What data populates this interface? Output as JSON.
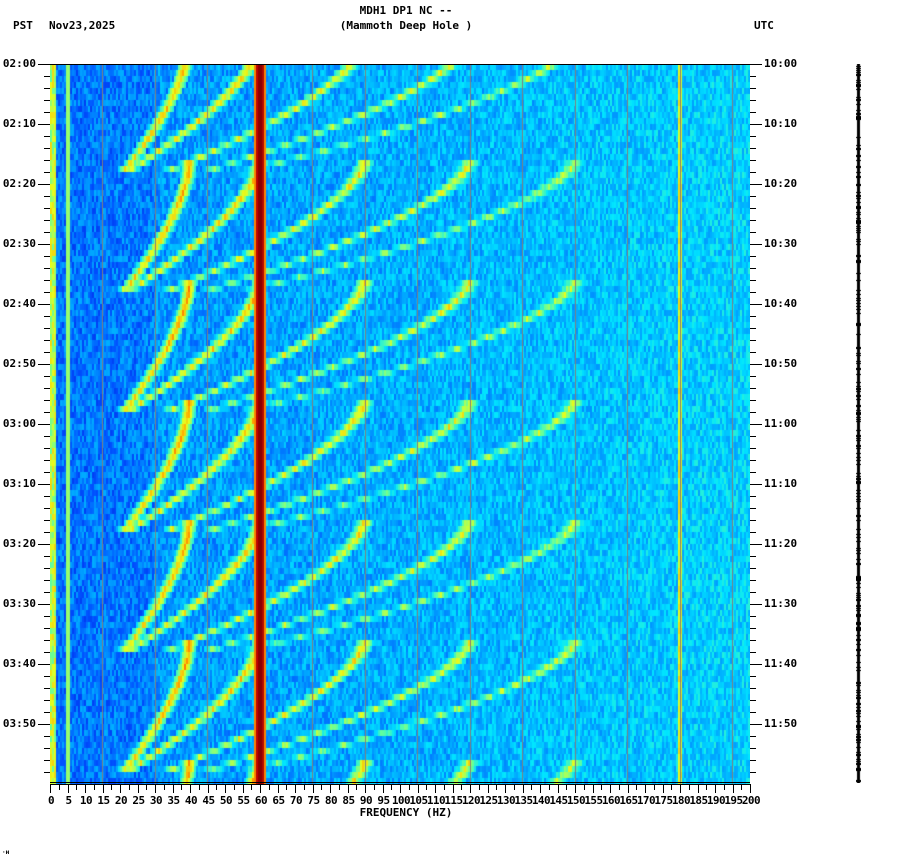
{
  "header": {
    "station_line": "MDH1 DP1 NC --",
    "station_name": "(Mammoth Deep Hole )",
    "left_timezone": "PST",
    "date": "Nov23,2025",
    "right_timezone": "UTC"
  },
  "footer": {
    "corner_mark": "·ʜ"
  },
  "colors": {
    "background": "#ffffff",
    "axis": "#000000",
    "gridline": "#7f7f7f",
    "colormap": [
      "#0000c8",
      "#0050ff",
      "#00a0ff",
      "#00e6ff",
      "#60ffa0",
      "#e6ff1e",
      "#ffb400",
      "#ff3c00",
      "#a00000"
    ]
  },
  "chart_data": {
    "type": "heatmap",
    "title": "MDH1 DP1 NC -- (Mammoth Deep Hole )",
    "subtitle_left": "PST  Nov23,2025",
    "subtitle_right": "UTC",
    "xlabel": "FREQUENCY (HZ)",
    "ylabel_left": "PST",
    "ylabel_right": "UTC",
    "xlim": [
      0,
      200
    ],
    "ylim_minutes": [
      0,
      120
    ],
    "x_ticks": [
      0,
      5,
      10,
      15,
      20,
      25,
      30,
      35,
      40,
      45,
      50,
      55,
      60,
      65,
      70,
      75,
      80,
      85,
      90,
      95,
      100,
      105,
      110,
      115,
      120,
      125,
      130,
      135,
      140,
      145,
      150,
      155,
      160,
      165,
      170,
      175,
      180,
      185,
      190,
      195,
      200
    ],
    "y_ticks_left": [
      "02:00",
      "02:10",
      "02:20",
      "02:30",
      "02:40",
      "02:50",
      "03:00",
      "03:10",
      "03:20",
      "03:30",
      "03:40",
      "03:50"
    ],
    "y_ticks_right": [
      "10:00",
      "10:10",
      "10:20",
      "10:30",
      "10:40",
      "10:50",
      "11:00",
      "11:10",
      "11:20",
      "11:30",
      "11:40",
      "11:50"
    ],
    "y_minor_tick_interval_minutes": 2,
    "grid": {
      "vertical_lines_every_hz": 15,
      "color": "#7f7f7f"
    },
    "persistent_lines_hz": [
      {
        "freq": 60,
        "intensity": "very high",
        "color": "dark red"
      },
      {
        "freq": 1,
        "intensity": "high",
        "color": "yellow/red"
      },
      {
        "freq": 180,
        "intensity": "moderate",
        "color": "orange"
      }
    ],
    "sweep_pattern": {
      "description": "Repeating downward-curving harmonic sweep arcs (frequency decreasing over time, restarting every ~20 min)",
      "cycle_minutes": 20,
      "cycle_starts_min": [
        -4,
        16,
        36,
        56,
        76,
        96,
        116
      ],
      "harmonics_start_hz": [
        60,
        120
      ],
      "fundamental_range_hz": [
        60,
        22
      ],
      "harmonic_count": 5
    },
    "background_level": "low (blue/cyan) increasing to cyan above 100 Hz"
  }
}
